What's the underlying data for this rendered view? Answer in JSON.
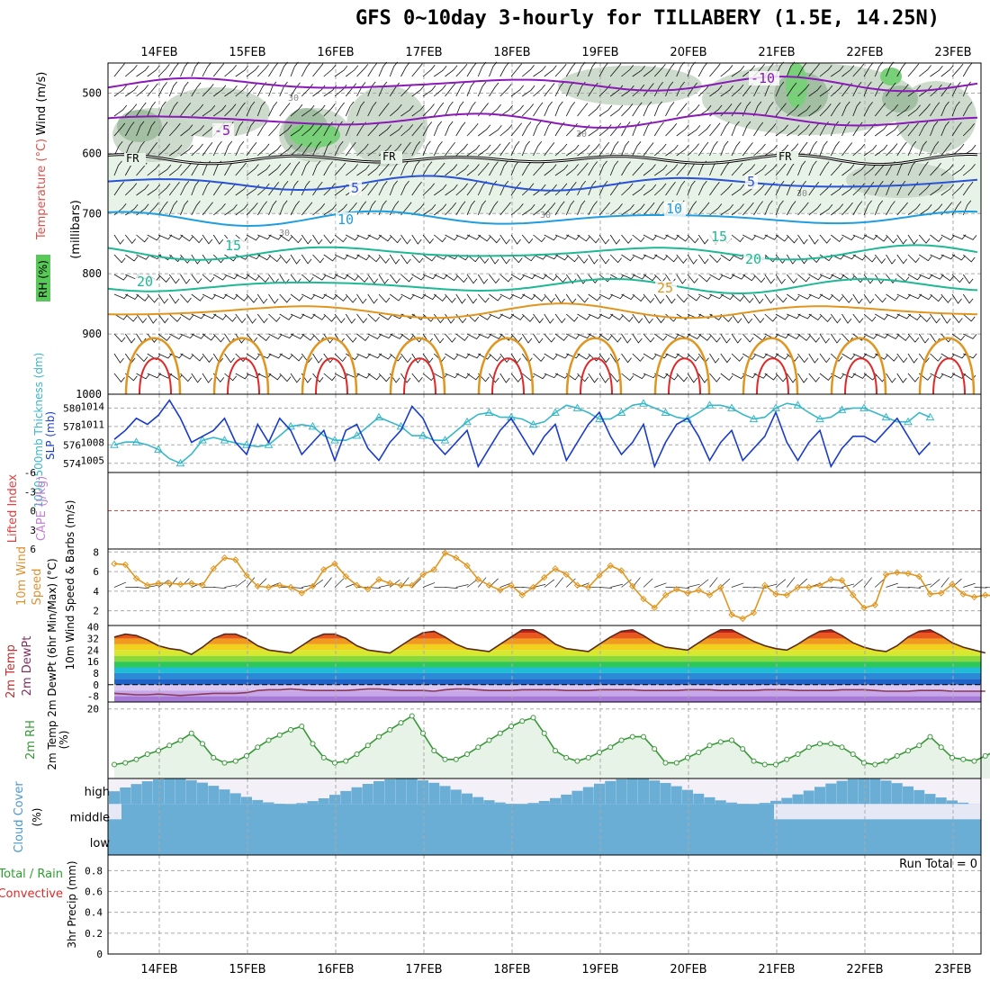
{
  "title": "GFS 0~10day 3-hourly for TILLABERY (1.5E, 14.25N)",
  "colors": {
    "rh_light": "#e8f3e8",
    "rh_mid": "#c8d7c8",
    "rh_dark": "#98b898",
    "rh_green": "#78d078",
    "temp_purple": "#8a19b8",
    "temp_blue": "#2a52d6",
    "temp_lightblue": "#1e9ee0",
    "temp_teal": "#1eb894",
    "temp_orange": "#e0961e",
    "temp_red": "#e02828",
    "slp": "#1a3cc8",
    "thickness": "#38b8c8",
    "wind10": "#e0961e",
    "rh2m": "#389838",
    "cloud": "#6aaed6",
    "cloud_bg": "#f4f0f8"
  },
  "chart_data": [
    {
      "type": "heatmap",
      "name": "upper-air cross-section",
      "x_ticks": [
        "14FEB",
        "15FEB",
        "16FEB",
        "17FEB",
        "18FEB",
        "19FEB",
        "20FEB",
        "21FEB",
        "22FEB",
        "23FEB"
      ],
      "ylabel": "(millibars)",
      "side_labels": [
        "Wind (m/s)",
        "Temperature (°C)",
        "RH (%)"
      ],
      "ylim": [
        1000,
        450
      ],
      "y_ticks": [
        500,
        600,
        700,
        800,
        900,
        1000
      ],
      "freezing_level_mb": 610,
      "freezing_label": "FR",
      "rh_labels": [
        "30",
        "30",
        "30",
        "30",
        "30"
      ],
      "contours": [
        {
          "label": "-10",
          "level_mb": 485,
          "color_key": "temp_purple"
        },
        {
          "label": "-5",
          "level_mb": 545,
          "color_key": "temp_purple"
        },
        {
          "label": "5",
          "level_mb": 650,
          "color_key": "temp_blue"
        },
        {
          "label": "10",
          "level_mb": 708,
          "color_key": "temp_lightblue"
        },
        {
          "label": "15",
          "level_mb": 765,
          "color_key": "temp_teal"
        },
        {
          "label": "20",
          "level_mb": 820,
          "color_key": "temp_teal"
        },
        {
          "label": "25",
          "level_mb": 862,
          "color_key": "temp_orange"
        }
      ]
    },
    {
      "type": "line",
      "name": "SLP and 1000-500mb thickness",
      "left_label": "1000-500mb Thickness (dm)",
      "right_label": "SLP (mb)",
      "left_ticks": [
        "580",
        "578",
        "576",
        "574"
      ],
      "right_ticks": [
        "1014",
        "1011",
        "1008",
        "1005"
      ],
      "ylim_slp": [
        1003,
        1016
      ],
      "ylim_thk": [
        573,
        581.5
      ],
      "series": [
        {
          "name": "SLP (mb)",
          "values": [
            1008.5,
            1010,
            1012,
            1011,
            1012.5,
            1015,
            1012,
            1008,
            1009,
            1010,
            1012,
            1008,
            1006,
            1011,
            1008,
            1012,
            1010,
            1006,
            1008,
            1010,
            1005,
            1010,
            1011,
            1007,
            1005,
            1008,
            1010,
            1014,
            1012,
            1008,
            1006,
            1008,
            1010,
            1004,
            1007,
            1010,
            1012,
            1009,
            1006,
            1009,
            1011,
            1005,
            1008,
            1011,
            1013,
            1009,
            1006,
            1008,
            1011,
            1004,
            1008,
            1011,
            1012,
            1009,
            1005,
            1008,
            1010,
            1005,
            1007,
            1009,
            1013,
            1008,
            1005,
            1008,
            1010,
            1004,
            1007,
            1009,
            1009,
            1008,
            1010,
            1012,
            1009,
            1006,
            1008
          ]
        },
        {
          "name": "Thickness (dm)",
          "values": [
            576,
            576.3,
            576.3,
            576,
            575.5,
            574.5,
            574,
            575,
            576.5,
            576.8,
            576.5,
            576.2,
            576,
            575.8,
            576,
            577,
            578,
            578.2,
            578,
            577,
            576.5,
            576.5,
            577,
            578,
            579,
            578.5,
            578,
            577,
            577,
            576.5,
            576.5,
            577.5,
            578.5,
            579.3,
            579.5,
            579,
            579,
            578.8,
            578.2,
            578.5,
            579.5,
            580.3,
            580,
            579.5,
            578.8,
            578.8,
            579.5,
            580.3,
            580.5,
            580,
            579.5,
            579,
            578.8,
            579.5,
            580.3,
            580.3,
            580,
            579.3,
            578.8,
            579,
            580,
            580.5,
            580.3,
            579.5,
            578.8,
            579,
            579.8,
            580,
            580,
            579.5,
            579,
            578.5,
            578.5,
            579.5,
            579
          ]
        }
      ]
    },
    {
      "type": "line",
      "name": "Lifted Index and CAPE",
      "left_label": "Lifted Index",
      "right_label": "CAPE (J/kg)",
      "y_ticks": [
        "-6",
        "-3",
        "0",
        "3",
        "6"
      ],
      "ylim": [
        -6,
        6
      ]
    },
    {
      "type": "line",
      "name": "10m wind speed",
      "ylabel": "10m Wind Speed & Barbs (m/s)",
      "y_ticks": [
        "8",
        "6",
        "4",
        "2"
      ],
      "ylim": [
        0.5,
        8.3
      ],
      "values": [
        6.8,
        6.7,
        5.3,
        4.6,
        4.8,
        4.8,
        4.7,
        4.8,
        4.6,
        6.3,
        7.4,
        7.2,
        5.6,
        4.5,
        4.4,
        4.6,
        4.4,
        3.8,
        4.5,
        6.2,
        6.8,
        5.5,
        4.6,
        4.2,
        5.2,
        4.8,
        4.6,
        4.6,
        5.7,
        6.2,
        7.9,
        7.4,
        6.6,
        5.2,
        4.6,
        4.1,
        4.6,
        3.6,
        4.4,
        5.4,
        6.3,
        5.7,
        4.6,
        4.4,
        5.6,
        6.6,
        6.1,
        4.5,
        3.2,
        2.3,
        3.6,
        4.2,
        3.8,
        4.1,
        3.6,
        4.4,
        1.6,
        1.2,
        1.8,
        4.6,
        3.7,
        3.6,
        4.4,
        4.4,
        4.6,
        5.2,
        5.1,
        3.6,
        2.3,
        2.6,
        5.7,
        5.9,
        5.8,
        5.5,
        3.7,
        3.8,
        4.7,
        3.7,
        3.4,
        3.6,
        3.5
      ]
    },
    {
      "type": "area",
      "name": "2m temperature and dewpoint",
      "ylabel": "2m Temp 2m DewPt (6hr Min/Max) (°C)",
      "y_ticks": [
        "40",
        "32",
        "24",
        "16",
        "8",
        "0",
        "-8"
      ],
      "ylim": [
        -12,
        41
      ],
      "temp": [
        33,
        35,
        34,
        31,
        27,
        25,
        24,
        21,
        26,
        32,
        35,
        35,
        32,
        27,
        24,
        23,
        22,
        27,
        32,
        35,
        35,
        32,
        27,
        24,
        23,
        22,
        27,
        32,
        36,
        37,
        33,
        28,
        25,
        24,
        23,
        28,
        33,
        38,
        38,
        34,
        28,
        25,
        24,
        23,
        28,
        33,
        37,
        38,
        34,
        29,
        26,
        25,
        24,
        29,
        34,
        38,
        38,
        34,
        30,
        27,
        25,
        24,
        28,
        33,
        37,
        38,
        34,
        29,
        26,
        24,
        23,
        27,
        33,
        37,
        38,
        34,
        29,
        26,
        24,
        22
      ],
      "dewpoint": [
        -6,
        -6.5,
        -7,
        -7,
        -6.5,
        -7,
        -7.5,
        -7,
        -6.5,
        -6,
        -6,
        -6,
        -5.5,
        -4,
        -3.5,
        -3.5,
        -3,
        -3.5,
        -4,
        -4,
        -4,
        -4,
        -3.5,
        -3,
        -3,
        -3.5,
        -4,
        -4,
        -4,
        -4.5,
        -3.5,
        -3,
        -3,
        -3.5,
        -4,
        -4,
        -4,
        -3.5,
        -3.5,
        -3.5,
        -3.5,
        -4,
        -4,
        -4,
        -3.5,
        -3.5,
        -3.5,
        -3.5,
        -4,
        -4,
        -4,
        -4,
        -3.5,
        -3.5,
        -3.5,
        -4,
        -4,
        -4,
        -4,
        -3.5,
        -3.5,
        -3.5,
        -4,
        -4,
        -4,
        -4,
        -3.5,
        -3.5,
        -3.5,
        -4,
        -4.5,
        -4.5,
        -4.5,
        -4,
        -4,
        -4,
        -4.5,
        -4.5,
        -4.5,
        -4.5
      ]
    },
    {
      "type": "area",
      "name": "2m relative humidity",
      "ylabel": "2m RH (%)",
      "y_ticks": [
        "20"
      ],
      "ylim": [
        0,
        22
      ],
      "values": [
        4,
        4.5,
        5.5,
        7,
        8,
        9.5,
        11,
        13,
        10,
        6,
        4.5,
        5,
        6.5,
        9,
        11,
        12.5,
        14,
        15,
        10,
        6,
        4.5,
        5,
        7,
        9.5,
        12,
        14,
        16,
        18,
        13,
        8,
        5.5,
        5.5,
        7,
        9,
        11,
        13,
        15,
        16.5,
        17.5,
        13,
        8,
        6,
        5,
        6,
        7.5,
        9,
        11,
        12,
        12,
        8.5,
        4.5,
        4.5,
        6,
        7.5,
        9.5,
        10.5,
        11,
        8.5,
        5,
        4,
        4,
        5.5,
        7,
        9,
        10,
        10,
        9,
        7,
        4.5,
        4,
        5,
        6.5,
        8,
        9.5,
        12,
        9,
        6,
        5.5,
        5,
        6.5,
        8
      ]
    },
    {
      "type": "heatmap",
      "name": "cloud cover",
      "ylabel": "Cloud Cover (%)",
      "rows": [
        "high",
        "middle",
        "low"
      ]
    },
    {
      "type": "bar",
      "name": "3hr precipitation",
      "ylabel": "3hr Precip (mm)",
      "legend": [
        "Total / Rain",
        "Convective"
      ],
      "y_ticks": [
        "0.8",
        "0.6",
        "0.4",
        "0.2",
        "0"
      ],
      "ylim": [
        0,
        0.95
      ],
      "run_total": "Run Total = 0"
    }
  ]
}
